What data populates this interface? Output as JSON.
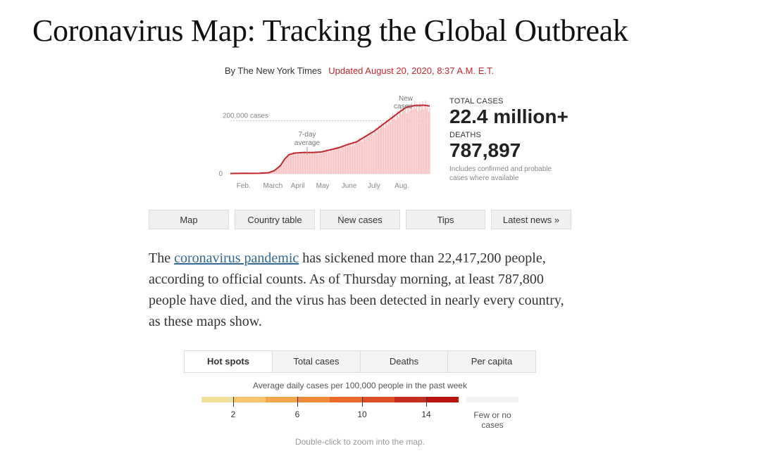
{
  "headline": "Coronavirus Map: Tracking the Global Outbreak",
  "byline": {
    "author": "By The New York Times",
    "updated": "Updated August 20, 2020, 8:37 A.M. E.T."
  },
  "stats": {
    "total_label": "TOTAL CASES",
    "total_value": "22.4 million+",
    "deaths_label": "DEATHS",
    "deaths_value": "787,897",
    "note_line1": "Includes confirmed and probable",
    "note_line2": "cases where available"
  },
  "chart_data": {
    "type": "bar",
    "title": "",
    "xlabel": "",
    "ylabel": "",
    "x_ticks": [
      "Feb.",
      "March",
      "April",
      "May",
      "June",
      "July",
      "Aug."
    ],
    "y_tick_labels": [
      "0",
      "200,000 cases"
    ],
    "ylim": [
      0,
      270000
    ],
    "annotations": {
      "avg_line1": "7-day",
      "avg_line2": "average",
      "new_line1": "New",
      "new_line2": "cases"
    },
    "series": [
      {
        "name": "New cases",
        "color": "#f7c4c4"
      },
      {
        "name": "7-day average",
        "color": "#c2272d"
      }
    ],
    "months_index": [
      0,
      1,
      2,
      3,
      4,
      5,
      6,
      7
    ],
    "avg_points": [
      [
        0,
        1000
      ],
      [
        0.5,
        2000
      ],
      [
        0.8,
        1500
      ],
      [
        1.0,
        2000
      ],
      [
        1.3,
        4000
      ],
      [
        1.5,
        12000
      ],
      [
        1.7,
        30000
      ],
      [
        1.85,
        55000
      ],
      [
        2.0,
        72000
      ],
      [
        2.2,
        78000
      ],
      [
        2.5,
        80000
      ],
      [
        2.8,
        80000
      ],
      [
        3.1,
        82000
      ],
      [
        3.4,
        90000
      ],
      [
        3.7,
        98000
      ],
      [
        4.0,
        110000
      ],
      [
        4.3,
        120000
      ],
      [
        4.6,
        140000
      ],
      [
        4.9,
        160000
      ],
      [
        5.2,
        185000
      ],
      [
        5.5,
        210000
      ],
      [
        5.8,
        235000
      ],
      [
        6.0,
        250000
      ],
      [
        6.3,
        257000
      ],
      [
        6.6,
        258000
      ],
      [
        6.8,
        255000
      ]
    ]
  },
  "nav": [
    "Map",
    "Country table",
    "New cases",
    "Tips",
    "Latest news »"
  ],
  "paragraph": {
    "pre": "The ",
    "link": "coronavirus pandemic",
    "post": " has sickened more than 22,417,200 people, according to official counts. As of Thursday morning, at least 787,800 people have died, and the virus has been detected in nearly every country, as these maps show."
  },
  "map_tabs": [
    "Hot spots",
    "Total cases",
    "Deaths",
    "Per capita"
  ],
  "legend": {
    "title": "Average daily cases per 100,000 people in the past week",
    "colors": [
      "#f4e09a",
      "#f5c46b",
      "#f2a64a",
      "#ee8a36",
      "#e8692a",
      "#dc4d23",
      "#c32f20",
      "#b81414"
    ],
    "numbers": [
      "2",
      "6",
      "10",
      "14"
    ],
    "few_line1": "Few or no",
    "few_line2": "cases",
    "hint": "Double-click to zoom into the map."
  }
}
